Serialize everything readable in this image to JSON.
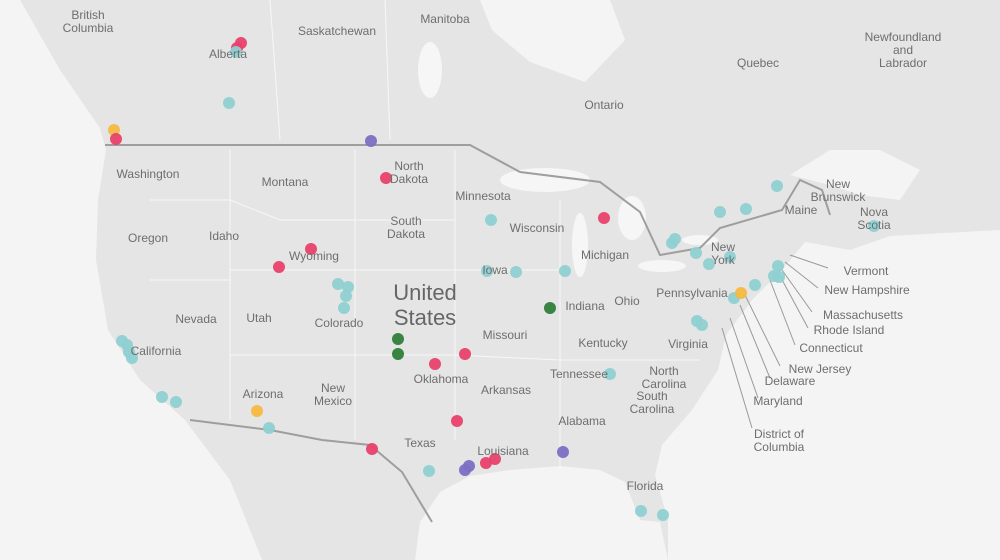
{
  "labels": [
    [
      "British",
      "Columbia"
    ],
    [
      "Alberta"
    ],
    [
      "Saskatchewan"
    ],
    [
      "Manitoba"
    ],
    [
      "Ontario"
    ],
    [
      "Quebec"
    ],
    [
      "Newfoundland",
      "and",
      "Labrador"
    ],
    [
      "New",
      "Brunswick"
    ],
    [
      "Nova",
      "Scotia"
    ],
    [
      "Washington"
    ],
    [
      "Montana"
    ],
    [
      "North",
      "Dakota"
    ],
    [
      "Minnesota"
    ],
    [
      "Oregon"
    ],
    [
      "Idaho"
    ],
    [
      "South",
      "Dakota"
    ],
    [
      "Wisconsin"
    ],
    [
      "Wyoming"
    ],
    [
      "Michigan"
    ],
    [
      "Iowa"
    ],
    [
      "Nevada"
    ],
    [
      "Utah"
    ],
    [
      "Colorado"
    ],
    [
      "United",
      "States"
    ],
    [
      "Missouri"
    ],
    [
      "Indiana"
    ],
    [
      "Ohio"
    ],
    [
      "Pennsylvania"
    ],
    [
      "New",
      "York"
    ],
    [
      "Maine"
    ],
    [
      "Vermont"
    ],
    [
      "New Hampshire"
    ],
    [
      "Massachusetts"
    ],
    [
      "Rhode Island"
    ],
    [
      "Connecticut"
    ],
    [
      "New Jersey"
    ],
    [
      "Delaware"
    ],
    [
      "Maryland"
    ],
    [
      "District of",
      "Columbia"
    ],
    [
      "Kentucky"
    ],
    [
      "Virginia"
    ],
    [
      "California"
    ],
    [
      "Oklahoma"
    ],
    [
      "Arkansas"
    ],
    [
      "Tennessee"
    ],
    [
      "North",
      "Carolina"
    ],
    [
      "South",
      "Carolina"
    ],
    [
      "New",
      "Mexico"
    ],
    [
      "Arizona"
    ],
    [
      "Alabama"
    ],
    [
      "Texas"
    ],
    [
      "Louisiana"
    ],
    [
      "Florida"
    ]
  ]
}
